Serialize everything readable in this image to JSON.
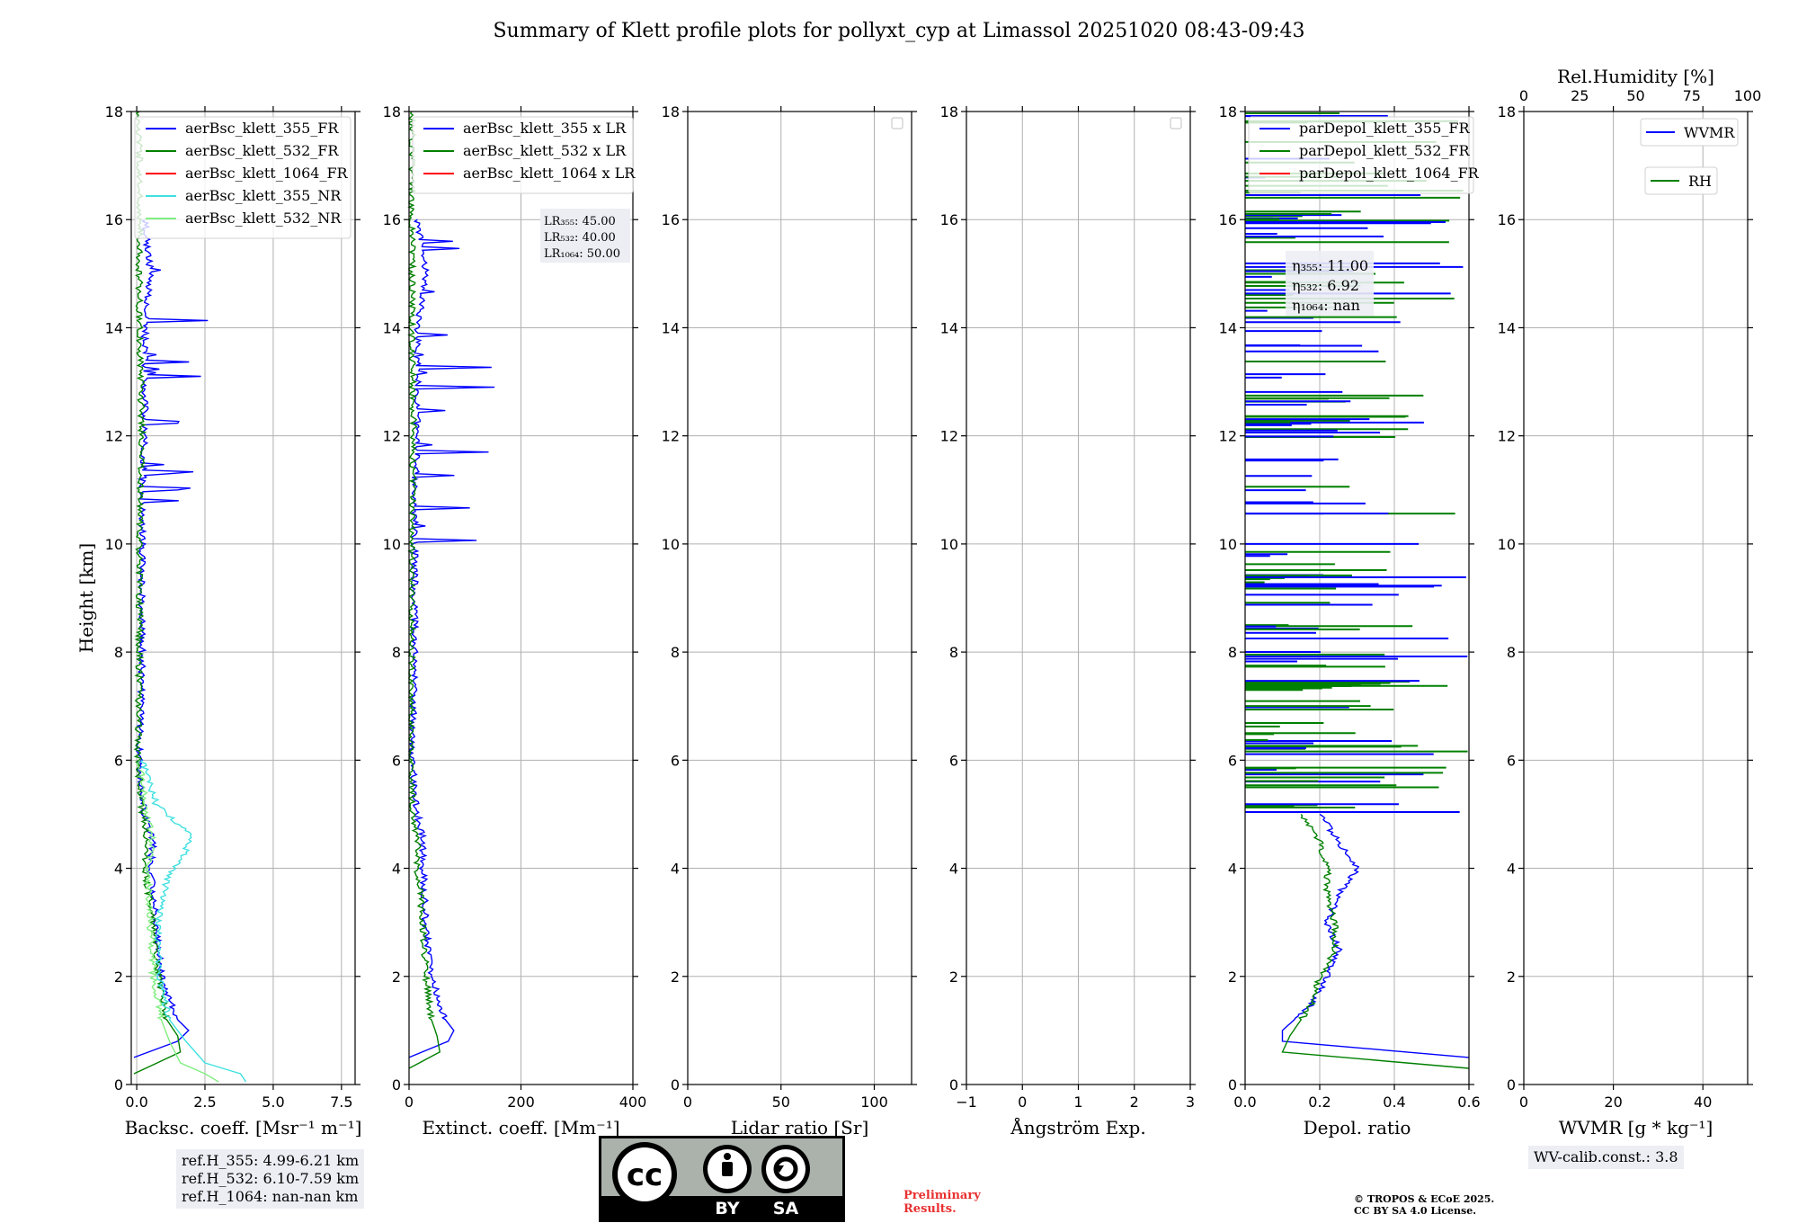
{
  "title": "Summary of Klett profile plots for pollyxt_cyp at Limassol 20251020 08:43-09:43",
  "ylabel": "Height [km]",
  "colors": {
    "c355": "#0000ff",
    "c532": "#008000",
    "c1064": "#ff0000",
    "c355nr": "#40e0e0",
    "c532nr": "#80ee80",
    "grid": "#b0b0b0"
  },
  "chart_data": [
    {
      "type": "line",
      "xlabel": "Backsc. coeff. [Msr⁻¹ m⁻¹]",
      "xlim": [
        -0.2,
        8.0
      ],
      "ylim": [
        0,
        18
      ],
      "xticks": [
        0,
        2.5,
        5.0,
        7.5
      ],
      "xticklabels": [
        "0.0",
        "2.5",
        "5.0",
        "7.5"
      ],
      "yticks": [
        0,
        2,
        4,
        6,
        8,
        10,
        12,
        14,
        16,
        18
      ],
      "legend": [
        "aerBsc_klett_355_FR",
        "aerBsc_klett_532_FR",
        "aerBsc_klett_1064_FR",
        "aerBsc_klett_355_NR",
        "aerBsc_klett_532_NR"
      ],
      "series": [
        {
          "name": "aerBsc_klett_355_FR",
          "color": "c355",
          "y": [
            0.5,
            0.8,
            1.0,
            1.2,
            2,
            3,
            4,
            4.5,
            5,
            6,
            8,
            10,
            11,
            12,
            14,
            15,
            16
          ],
          "x": [
            -0.1,
            1.5,
            1.9,
            1.5,
            0.9,
            0.7,
            0.5,
            0.6,
            0.3,
            0.1,
            0.2,
            0.2,
            0.2,
            0.3,
            0.3,
            0.5,
            0.3
          ]
        },
        {
          "name": "aerBsc_klett_532_FR",
          "color": "c532",
          "y": [
            0.2,
            0.6,
            0.9,
            1.2,
            2,
            3,
            4,
            4.5,
            5,
            6,
            8,
            10,
            12,
            14,
            16,
            18
          ],
          "x": [
            -0.1,
            1.6,
            1.5,
            1.1,
            0.8,
            0.6,
            0.3,
            0.4,
            0.2,
            0.05,
            0.1,
            0.1,
            0.2,
            0.1,
            0.1,
            0.1
          ]
        },
        {
          "name": "aerBsc_klett_355_NR",
          "color": "c355nr",
          "y": [
            0.05,
            0.2,
            0.4,
            0.8,
            1.2,
            2,
            3,
            3.8,
            4.2,
            4.6,
            5.2,
            6
          ],
          "x": [
            4.0,
            3.8,
            2.5,
            1.8,
            1.2,
            0.8,
            0.8,
            1.1,
            1.7,
            2.0,
            0.7,
            0.2
          ]
        },
        {
          "name": "aerBsc_klett_532_NR",
          "color": "c532nr",
          "y": [
            0.05,
            0.2,
            0.4,
            0.8,
            1.2,
            2,
            3,
            4,
            4.6,
            5.2,
            6
          ],
          "x": [
            3.0,
            2.5,
            1.6,
            1.2,
            0.9,
            0.6,
            0.5,
            0.4,
            0.6,
            0.3,
            0.1
          ]
        }
      ],
      "info": [
        "ref.H_355: 4.99-6.21 km",
        "ref.H_532: 6.10-7.59 km",
        "ref.H_1064: nan-nan km"
      ]
    },
    {
      "type": "line",
      "xlabel": "Extinct. coeff. [Mm⁻¹]",
      "xlim": [
        0,
        400
      ],
      "ylim": [
        0,
        18
      ],
      "xticks": [
        0,
        200,
        400
      ],
      "xticklabels": [
        "0",
        "200",
        "400"
      ],
      "legend": [
        "aerBsc_klett_355 x LR",
        "aerBsc_klett_532 x LR",
        "aerBsc_klett_1064 x LR"
      ],
      "series": [
        {
          "name": "aerBsc_klett_355 x LR",
          "color": "c355",
          "y": [
            0.5,
            0.8,
            1.0,
            1.2,
            2,
            3,
            4,
            4.5,
            5,
            6,
            8,
            10,
            11,
            12,
            14,
            15,
            16
          ],
          "x": [
            0,
            70,
            80,
            65,
            40,
            30,
            25,
            25,
            15,
            5,
            10,
            10,
            10,
            15,
            15,
            30,
            15
          ]
        },
        {
          "name": "aerBsc_klett_532 x LR",
          "color": "c532",
          "y": [
            0.3,
            0.6,
            0.9,
            1.2,
            2,
            3,
            4,
            4.5,
            5,
            6,
            8,
            10,
            12,
            14,
            16,
            18
          ],
          "x": [
            0,
            55,
            50,
            40,
            30,
            25,
            15,
            15,
            8,
            2,
            5,
            5,
            8,
            5,
            5,
            5
          ]
        }
      ],
      "lr": {
        "l355": "LR₃₅₅: 45.00",
        "l532": "LR₅₃₂: 40.00",
        "l1064": "LR₁₀₆₄: 50.00"
      }
    },
    {
      "type": "line",
      "xlabel": "Lidar ratio [Sr]",
      "xlim": [
        0,
        120
      ],
      "ylim": [
        0,
        18
      ],
      "xticks": [
        0,
        50,
        100
      ],
      "xticklabels": [
        "0",
        "50",
        "100"
      ],
      "series": []
    },
    {
      "type": "line",
      "xlabel": "Ångström Exp.",
      "xlim": [
        -1,
        3
      ],
      "ylim": [
        0,
        18
      ],
      "xticks": [
        -1,
        0,
        1,
        2,
        3
      ],
      "xticklabels": [
        "−1",
        "0",
        "1",
        "2",
        "3"
      ],
      "series": []
    },
    {
      "type": "line",
      "xlabel": "Depol. ratio",
      "xlim": [
        0,
        0.6
      ],
      "ylim": [
        0,
        18
      ],
      "xticks": [
        0,
        0.2,
        0.4,
        0.6
      ],
      "xticklabels": [
        "0.0",
        "0.2",
        "0.4",
        "0.6"
      ],
      "legend": [
        "parDepol_klett_355_FR",
        "parDepol_klett_532_FR",
        "parDepol_klett_1064_FR"
      ],
      "series": [
        {
          "name": "parDepol_klett_355_FR",
          "color": "c355",
          "y": [
            0.5,
            0.8,
            1.0,
            1.5,
            2,
            2.5,
            3,
            3.5,
            4,
            4.5,
            5
          ],
          "x": [
            0.6,
            0.1,
            0.1,
            0.18,
            0.22,
            0.25,
            0.22,
            0.25,
            0.3,
            0.25,
            0.2
          ]
        },
        {
          "name": "parDepol_klett_532_FR",
          "color": "c532",
          "y": [
            0.3,
            0.6,
            0.9,
            1.5,
            2,
            2.5,
            3,
            3.5,
            4,
            4.5,
            5
          ],
          "x": [
            0.6,
            0.1,
            0.12,
            0.18,
            0.2,
            0.24,
            0.24,
            0.22,
            0.22,
            0.2,
            0.15
          ]
        }
      ],
      "eta": {
        "e355": "η₃₅₅: 11.00",
        "e532": "η₅₃₂: 6.92",
        "e1064": "η₁₀₆₄: nan"
      }
    },
    {
      "type": "line",
      "xlabel": "WVMR [g * kg⁻¹]",
      "xlim": [
        0,
        50
      ],
      "ylim": [
        0,
        18
      ],
      "xticks": [
        0,
        20,
        40
      ],
      "xticklabels": [
        "0",
        "20",
        "40"
      ],
      "top_axis": {
        "label": "Rel.Humidity [%]",
        "ticks": [
          0,
          25,
          50,
          75,
          100
        ],
        "xlim": [
          0,
          100
        ]
      },
      "legend": [
        "WVMR",
        "RH"
      ],
      "series": [],
      "info": [
        "WV-calib.const.: 3.8"
      ]
    }
  ],
  "footer": {
    "preliminary": [
      "Preliminary",
      "Results."
    ],
    "copyright": [
      "© TROPOS & ECoE 2025.",
      "CC BY SA 4.0 License."
    ],
    "cc_by": "BY",
    "cc_sa": "SA",
    "cc_mark": "cc"
  }
}
